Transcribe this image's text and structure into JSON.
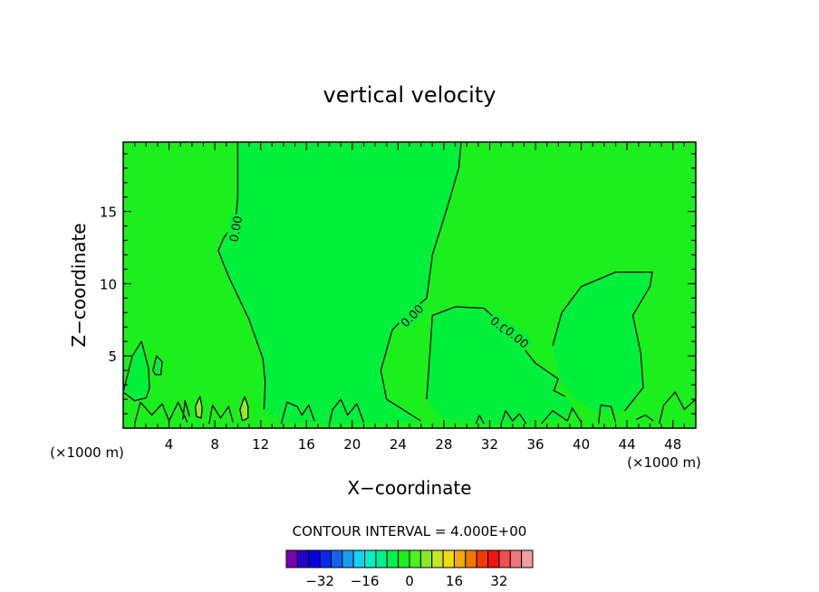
{
  "chart_data": {
    "type": "contour",
    "title": "vertical velocity",
    "xlabel": "X−coordinate",
    "ylabel": "Z−coordinate",
    "x_unit_left": "(×1000 m)",
    "x_unit_right": "(×1000 m)",
    "xlim": [
      0,
      50
    ],
    "ylim": [
      0,
      19.8
    ],
    "x_ticks": [
      4,
      8,
      12,
      16,
      20,
      24,
      28,
      32,
      36,
      40,
      44,
      48
    ],
    "y_ticks": [
      5,
      10,
      15
    ],
    "contour_interval_text": "CONTOUR INTERVAL = 4.000E+00",
    "contour_label": "0.00",
    "background_color": "#1cf01c",
    "negative_fill_color": "#00f03c",
    "positive_fill_color": "#a0e628",
    "colorbar": {
      "colors": [
        "#7a00b4",
        "#2800c8",
        "#0000e6",
        "#0a28f0",
        "#1064f0",
        "#14a0f0",
        "#14d2f0",
        "#00f0c8",
        "#00f08c",
        "#00f050",
        "#1cf01c",
        "#50f01c",
        "#8ce628",
        "#c8e628",
        "#f0dc14",
        "#f0aa0a",
        "#f07800",
        "#f03c00",
        "#f01414",
        "#f05050",
        "#f07878",
        "#f0a0a0"
      ],
      "tick_labels": [
        "−32",
        "−16",
        "0",
        "16",
        "32"
      ],
      "tick_values": [
        -32,
        -16,
        0,
        16,
        32
      ],
      "min": -44,
      "max": 44
    },
    "negative_regions": [
      [
        [
          10,
          19.8
        ],
        [
          29.5,
          19.8
        ],
        [
          29.3,
          18
        ],
        [
          28.2,
          15
        ],
        [
          27,
          12
        ],
        [
          26.5,
          9
        ],
        [
          25,
          8
        ],
        [
          23.5,
          6.8
        ],
        [
          22.5,
          4
        ],
        [
          23,
          2
        ],
        [
          26,
          0.5
        ],
        [
          20,
          0.3
        ],
        [
          14,
          0.4
        ],
        [
          12.3,
          1.3
        ],
        [
          12.4,
          3.2
        ],
        [
          12.2,
          4.8
        ],
        [
          11,
          7.5
        ],
        [
          9.2,
          10.5
        ],
        [
          8.3,
          12.3
        ],
        [
          8.8,
          13.2
        ],
        [
          9.8,
          14.2
        ],
        [
          10,
          16
        ]
      ],
      [
        [
          26.5,
          2
        ],
        [
          27,
          7.8
        ],
        [
          29,
          8.4
        ],
        [
          31.5,
          8.3
        ],
        [
          34,
          6.5
        ],
        [
          36,
          4.5
        ],
        [
          38,
          3.4
        ],
        [
          37.6,
          2.6
        ],
        [
          38.6,
          2.2
        ],
        [
          39.5,
          1.2
        ],
        [
          38,
          0.6
        ],
        [
          33,
          0.3
        ],
        [
          28,
          0.6
        ]
      ],
      [
        [
          37.5,
          5.7
        ],
        [
          38.3,
          8
        ],
        [
          40,
          9.8
        ],
        [
          43,
          10.8
        ],
        [
          46.2,
          10.8
        ],
        [
          46,
          9.8
        ],
        [
          44.5,
          7.8
        ],
        [
          45.2,
          5.2
        ],
        [
          45.4,
          2.8
        ],
        [
          43.8,
          1.2
        ],
        [
          41,
          1.2
        ],
        [
          39.3,
          2.2
        ],
        [
          38.2,
          3.3
        ]
      ],
      [
        [
          0,
          2.5
        ],
        [
          0.8,
          5
        ],
        [
          1.6,
          6
        ],
        [
          2.2,
          4.2
        ],
        [
          2.3,
          2.8
        ],
        [
          2,
          2.1
        ],
        [
          1,
          1.9
        ]
      ],
      [
        [
          2.6,
          4
        ],
        [
          2.9,
          5
        ],
        [
          3.4,
          4.6
        ],
        [
          3.3,
          3.7
        ],
        [
          2.8,
          3.7
        ]
      ]
    ],
    "positive_regions": [
      [
        [
          10.4,
          0.5
        ],
        [
          10.2,
          1.3
        ],
        [
          10.6,
          2.2
        ],
        [
          10.9,
          1.5
        ],
        [
          10.9,
          0.7
        ]
      ],
      [
        [
          6.4,
          0.8
        ],
        [
          6.3,
          1.5
        ],
        [
          6.7,
          2.2
        ],
        [
          6.9,
          1.4
        ],
        [
          6.8,
          0.7
        ]
      ]
    ],
    "contour_lines": [
      [
        [
          10,
          19.8
        ],
        [
          10,
          16
        ],
        [
          9.8,
          14.2
        ],
        [
          8.8,
          13.2
        ],
        [
          8.3,
          12.3
        ],
        [
          9.2,
          10.5
        ],
        [
          11,
          7.5
        ],
        [
          12.2,
          4.8
        ],
        [
          12.4,
          3.2
        ],
        [
          12.3,
          1.3
        ]
      ],
      [
        [
          29.5,
          19.8
        ],
        [
          29.3,
          18
        ],
        [
          28.2,
          15
        ],
        [
          27,
          12
        ],
        [
          26.5,
          9
        ],
        [
          25,
          8
        ],
        [
          23.5,
          6.8
        ],
        [
          22.5,
          4
        ],
        [
          23,
          2
        ],
        [
          26,
          0.5
        ]
      ],
      [
        [
          26.5,
          2
        ],
        [
          27,
          7.8
        ],
        [
          29,
          8.4
        ],
        [
          31.5,
          8.3
        ],
        [
          34,
          6.5
        ],
        [
          36,
          4.5
        ],
        [
          38,
          3.4
        ],
        [
          37.6,
          2.6
        ],
        [
          38.6,
          2.2
        ]
      ],
      [
        [
          37.5,
          5.7
        ],
        [
          38.3,
          8
        ],
        [
          40,
          9.8
        ],
        [
          43,
          10.8
        ],
        [
          46.2,
          10.8
        ],
        [
          46,
          9.8
        ],
        [
          44.5,
          7.8
        ],
        [
          45.2,
          5.2
        ],
        [
          45.4,
          2.8
        ],
        [
          43.8,
          1.2
        ]
      ],
      [
        [
          0,
          2.5
        ],
        [
          0.8,
          5
        ],
        [
          1.6,
          6
        ],
        [
          2.2,
          4.2
        ],
        [
          2.3,
          2.8
        ],
        [
          2,
          2.1
        ],
        [
          1,
          1.9
        ],
        [
          0,
          2.5
        ]
      ],
      [
        [
          2.6,
          4
        ],
        [
          2.9,
          5
        ],
        [
          3.4,
          4.6
        ],
        [
          3.3,
          3.7
        ],
        [
          2.8,
          3.7
        ],
        [
          2.6,
          4
        ]
      ],
      [
        [
          10.4,
          0.5
        ],
        [
          10.2,
          1.3
        ],
        [
          10.6,
          2.2
        ],
        [
          10.9,
          1.5
        ],
        [
          10.9,
          0.7
        ],
        [
          10.4,
          0.5
        ]
      ],
      [
        [
          6.4,
          0.8
        ],
        [
          6.3,
          1.5
        ],
        [
          6.7,
          2.2
        ],
        [
          6.9,
          1.4
        ],
        [
          6.8,
          0.7
        ],
        [
          6.4,
          0.8
        ]
      ],
      [
        [
          36.5,
          0.3
        ],
        [
          37.5,
          1.2
        ],
        [
          38.8,
          0.5
        ],
        [
          39.2,
          1.4
        ],
        [
          40,
          0.4
        ]
      ],
      [
        [
          1,
          0.3
        ],
        [
          1.5,
          1.8
        ],
        [
          2.5,
          0.9
        ],
        [
          3.4,
          1.7
        ],
        [
          4,
          0.5
        ],
        [
          4.8,
          1.8
        ],
        [
          5.6,
          0.4
        ]
      ],
      [
        [
          5.2,
          0.6
        ],
        [
          5.4,
          1.9
        ],
        [
          5.8,
          0.8
        ]
      ],
      [
        [
          7.5,
          0.3
        ],
        [
          7.8,
          1.6
        ],
        [
          8.5,
          0.7
        ],
        [
          9.2,
          1.5
        ],
        [
          9.6,
          0.4
        ]
      ],
      [
        [
          13.8,
          0.3
        ],
        [
          14.3,
          1.8
        ],
        [
          15.2,
          1.5
        ],
        [
          15.6,
          0.9
        ],
        [
          16.2,
          1.6
        ],
        [
          16.7,
          0.5
        ]
      ],
      [
        [
          18,
          0.3
        ],
        [
          18.3,
          1.3
        ],
        [
          19,
          2
        ],
        [
          19.6,
          0.9
        ],
        [
          20.4,
          1.7
        ],
        [
          21,
          0.4
        ]
      ],
      [
        [
          41.5,
          0.3
        ],
        [
          41.7,
          1.6
        ],
        [
          42.6,
          1.5
        ],
        [
          43,
          0.4
        ]
      ],
      [
        [
          46.8,
          0.3
        ],
        [
          47.2,
          1.6
        ],
        [
          48.2,
          2.5
        ],
        [
          49,
          1.3
        ],
        [
          50,
          2
        ]
      ],
      [
        [
          44.8,
          0.6
        ],
        [
          45.6,
          0.9
        ],
        [
          46.3,
          0.5
        ]
      ],
      [
        [
          30.8,
          0.3
        ],
        [
          31.1,
          0.9
        ],
        [
          31.5,
          0.3
        ]
      ],
      [
        [
          33,
          0.3
        ],
        [
          33.4,
          1.2
        ],
        [
          34,
          0.5
        ],
        [
          34.6,
          1
        ],
        [
          35.2,
          0.3
        ]
      ]
    ],
    "contour_label_positions": [
      {
        "x": 9.8,
        "y": 13.8,
        "angle": -80
      },
      {
        "x": 25.2,
        "y": 7.8,
        "angle": -45
      },
      {
        "x": 33.1,
        "y": 7,
        "angle": 40
      },
      {
        "x": 34.4,
        "y": 6.3,
        "angle": 40
      }
    ]
  }
}
